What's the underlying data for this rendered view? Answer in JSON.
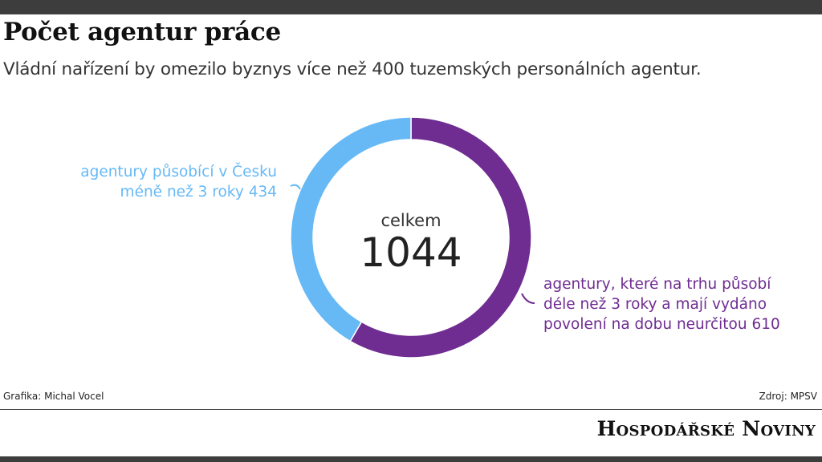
{
  "header": {
    "title": "Počet agentur práce",
    "subtitle": "Vládní nařízení by omezilo byznys více než 400 tuzemských personálních agentur."
  },
  "chart_data": {
    "type": "pie",
    "variant": "donut",
    "center_label": "celkem",
    "center_value": "1044",
    "slices": [
      {
        "label_lines": [
          "agentury, které na trhu působí",
          "déle než 3 roky a mají vydáno",
          "povolení na dobu neurčitou 610"
        ],
        "value": 610,
        "color": "#6f2c91"
      },
      {
        "label_lines": [
          "agentury působící v Česku",
          "méně než 3 roky 434"
        ],
        "value": 434,
        "color": "#66b9f5"
      }
    ]
  },
  "footer": {
    "credit": "Grafika: Michal Vocel",
    "source": "Zdroj: MPSV",
    "logo": "Hospodářské Noviny"
  }
}
